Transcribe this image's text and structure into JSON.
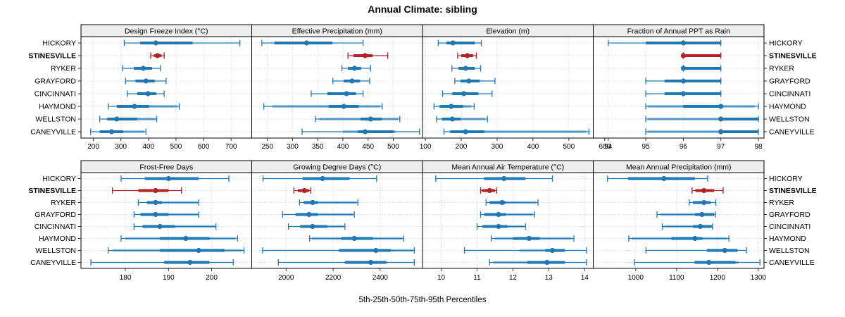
{
  "title": "Annual Climate: sibling",
  "footer": "5th-25th-50th-75th-95th Percentiles",
  "sites": [
    "HICKORY",
    "STINESVILLE",
    "RYKER",
    "GRAYFORD",
    "CINCINNATI",
    "HAYMOND",
    "WELLSTON",
    "CANEYVILLE"
  ],
  "highlight_site": "STINESVILLE",
  "colors": {
    "series": "#1f77b4",
    "series_light": "#9fc8e2",
    "highlight": "#b22222",
    "highlight_light": "#dba5a5",
    "grid": "#c8c8c8",
    "strip_bg": "#ededed",
    "panel_border": "#000000",
    "tick": "#333333",
    "text": "#000000"
  },
  "chart_data": [
    {
      "type": "percentile-interval",
      "title": "Design Freeze Index (°C)",
      "grid_row": 0,
      "grid_col": 0,
      "xlim": [
        155,
        775
      ],
      "ticks": [
        200,
        300,
        400,
        500,
        600,
        700
      ],
      "series": [
        {
          "site": "HICKORY",
          "p": [
            312,
            370,
            427,
            560,
            732
          ],
          "light": null
        },
        {
          "site": "STINESVILLE",
          "p": [
            408,
            420,
            433,
            447,
            457
          ],
          "light": null
        },
        {
          "site": "RYKER",
          "p": [
            306,
            347,
            381,
            413,
            444
          ],
          "light": null
        },
        {
          "site": "GRAYFORD",
          "p": [
            317,
            353,
            391,
            423,
            464
          ],
          "light": null
        },
        {
          "site": "CINCINNATI",
          "p": [
            323,
            359,
            398,
            428,
            457
          ],
          "light": null
        },
        {
          "site": "HAYMOND",
          "p": [
            254,
            285,
            349,
            402,
            512
          ],
          "light": [
            402,
            505
          ]
        },
        {
          "site": "WELLSTON",
          "p": [
            223,
            250,
            285,
            359,
            430
          ],
          "light": [
            359,
            425
          ]
        },
        {
          "site": "CANEYVILLE",
          "p": [
            190,
            223,
            266,
            308,
            391
          ],
          "light": [
            308,
            385
          ]
        }
      ]
    },
    {
      "type": "percentile-interval",
      "title": "Effective Precipitation (mm)",
      "grid_row": 0,
      "grid_col": 1,
      "xlim": [
        219,
        558
      ],
      "ticks": [
        250,
        300,
        350,
        400,
        450,
        500
      ],
      "series": [
        {
          "site": "HICKORY",
          "p": [
            239,
            264,
            328,
            379,
            440
          ],
          "light": null
        },
        {
          "site": "STINESVILLE",
          "p": [
            410,
            421,
            444,
            459,
            489
          ],
          "light": null
        },
        {
          "site": "RYKER",
          "p": [
            398,
            410,
            423,
            436,
            455
          ],
          "light": null
        },
        {
          "site": "GRAYFORD",
          "p": [
            380,
            402,
            418,
            434,
            453
          ],
          "light": null
        },
        {
          "site": "CINCINNATI",
          "p": [
            337,
            369,
            407,
            426,
            440
          ],
          "light": null
        },
        {
          "site": "HAYMOND",
          "p": [
            243,
            372,
            402,
            431,
            478
          ],
          "light": [
            260,
            474
          ]
        },
        {
          "site": "WELLSTON",
          "p": [
            345,
            435,
            455,
            477,
            513
          ],
          "light": [
            353,
            509
          ]
        },
        {
          "site": "CANEYVILLE",
          "p": [
            319,
            430,
            444,
            500,
            552
          ],
          "light": [
            400,
            505
          ]
        }
      ]
    },
    {
      "type": "percentile-interval",
      "title": "Elevation (m)",
      "grid_row": 0,
      "grid_col": 2,
      "xlim": [
        92,
        568
      ],
      "ticks": [
        100,
        200,
        300,
        400,
        500,
        600
      ],
      "series": [
        {
          "site": "HICKORY",
          "p": [
            136,
            159,
            177,
            238,
            256
          ],
          "light": null
        },
        {
          "site": "STINESVILLE",
          "p": [
            190,
            200,
            217,
            233,
            242
          ],
          "light": null
        },
        {
          "site": "RYKER",
          "p": [
            174,
            192,
            212,
            238,
            254
          ],
          "light": null
        },
        {
          "site": "GRAYFORD",
          "p": [
            182,
            198,
            221,
            251,
            294
          ],
          "light": null
        },
        {
          "site": "CINCINNATI",
          "p": [
            148,
            175,
            207,
            248,
            286
          ],
          "light": null
        },
        {
          "site": "HAYMOND",
          "p": [
            124,
            140,
            172,
            205,
            236
          ],
          "light": [
            175,
            228
          ]
        },
        {
          "site": "WELLSTON",
          "p": [
            131,
            146,
            175,
            198,
            273
          ],
          "light": [
            198,
            267
          ]
        },
        {
          "site": "CANEYVILLE",
          "p": [
            152,
            169,
            212,
            264,
            556
          ],
          "light": [
            264,
            548
          ]
        }
      ]
    },
    {
      "type": "percentile-interval",
      "title": "Fraction of Annual PPT as Rain",
      "grid_row": 0,
      "grid_col": 3,
      "xlim": [
        93.6,
        98.15
      ],
      "ticks": [
        94,
        95,
        96,
        97,
        98
      ],
      "series": [
        {
          "site": "HICKORY",
          "p": [
            94,
            95,
            96,
            97,
            97
          ],
          "light": null
        },
        {
          "site": "STINESVILLE",
          "p": [
            96,
            96,
            96,
            97,
            97
          ],
          "light": null
        },
        {
          "site": "RYKER",
          "p": [
            96,
            96,
            96,
            97,
            97
          ],
          "light": null
        },
        {
          "site": "GRAYFORD",
          "p": [
            95,
            95.5,
            96,
            97,
            97
          ],
          "light": null
        },
        {
          "site": "CINCINNATI",
          "p": [
            95,
            95.5,
            96,
            97,
            97
          ],
          "light": null
        },
        {
          "site": "HAYMOND",
          "p": [
            95,
            96,
            97,
            97,
            98
          ],
          "light": [
            95.05,
            97.9
          ]
        },
        {
          "site": "WELLSTON",
          "p": [
            95,
            97,
            97,
            98,
            98
          ],
          "light": [
            95.05,
            97
          ]
        },
        {
          "site": "CANEYVILLE",
          "p": [
            95,
            97,
            97,
            98,
            98
          ],
          "light": [
            95.05,
            97
          ]
        }
      ]
    },
    {
      "type": "percentile-interval",
      "title": "Frost-Free Days",
      "grid_row": 1,
      "grid_col": 0,
      "xlim": [
        169.7,
        209.3
      ],
      "ticks": [
        180,
        190,
        200
      ],
      "series": [
        {
          "site": "HICKORY",
          "p": [
            179,
            184.5,
            190,
            197,
            204
          ],
          "light": null
        },
        {
          "site": "STINESVILLE",
          "p": [
            177,
            183,
            187,
            190,
            193
          ],
          "light": null
        },
        {
          "site": "RYKER",
          "p": [
            183,
            185,
            187,
            188.5,
            197
          ],
          "light": [
            188.5,
            196.8
          ]
        },
        {
          "site": "GRAYFORD",
          "p": [
            182,
            183.5,
            187,
            190,
            197
          ],
          "light": [
            190,
            196.8
          ]
        },
        {
          "site": "CINCINNATI",
          "p": [
            182,
            184,
            188,
            191.5,
            201
          ],
          "light": [
            191.5,
            200.8
          ]
        },
        {
          "site": "HAYMOND",
          "p": [
            179,
            188,
            194,
            199.5,
            206
          ],
          "light": [
            180,
            205.5
          ]
        },
        {
          "site": "WELLSTON",
          "p": [
            176,
            188,
            197,
            203,
            207.5
          ],
          "light": [
            177,
            207
          ]
        },
        {
          "site": "CANEYVILLE",
          "p": [
            172,
            189,
            195,
            199.5,
            205
          ],
          "light": null
        }
      ]
    },
    {
      "type": "percentile-interval",
      "title": "Growing Degree Days (°C)",
      "grid_row": 1,
      "grid_col": 1,
      "xlim": [
        1854,
        2580
      ],
      "ticks": [
        2000,
        2200,
        2400
      ],
      "series": [
        {
          "site": "HICKORY",
          "p": [
            1902,
            2070,
            2155,
            2270,
            2385
          ],
          "light": null
        },
        {
          "site": "STINESVILLE",
          "p": [
            2033,
            2050,
            2078,
            2098,
            2105
          ],
          "light": null
        },
        {
          "site": "RYKER",
          "p": [
            2057,
            2075,
            2113,
            2135,
            2305
          ],
          "light": [
            2135,
            2300
          ]
        },
        {
          "site": "GRAYFORD",
          "p": [
            1985,
            2040,
            2097,
            2135,
            2290
          ],
          "light": [
            2135,
            2285
          ]
        },
        {
          "site": "CINCINNATI",
          "p": [
            2010,
            2060,
            2112,
            2175,
            2250
          ],
          "light": [
            2175,
            2245
          ]
        },
        {
          "site": "HAYMOND",
          "p": [
            2100,
            2235,
            2290,
            2370,
            2500
          ],
          "light": [
            2110,
            2495
          ]
        },
        {
          "site": "WELLSTON",
          "p": [
            1900,
            2225,
            2382,
            2445,
            2545
          ],
          "light": [
            2230,
            2540
          ]
        },
        {
          "site": "CANEYVILLE",
          "p": [
            1967,
            2250,
            2360,
            2425,
            2545
          ],
          "light": [
            2250,
            2430
          ]
        }
      ]
    },
    {
      "type": "percentile-interval",
      "title": "Mean Annual Air Temperature (°C)",
      "grid_row": 1,
      "grid_col": 2,
      "xlim": [
        9.48,
        14.24
      ],
      "ticks": [
        10,
        11,
        12,
        13,
        14
      ],
      "series": [
        {
          "site": "HICKORY",
          "p": [
            9.85,
            11.2,
            11.75,
            12.35,
            13.1
          ],
          "light": null
        },
        {
          "site": "STINESVILLE",
          "p": [
            11.1,
            11.15,
            11.35,
            11.5,
            11.55
          ],
          "light": null
        },
        {
          "site": "RYKER",
          "p": [
            11.25,
            11.35,
            11.7,
            11.8,
            12.7
          ],
          "light": [
            11.8,
            12.65
          ]
        },
        {
          "site": "GRAYFORD",
          "p": [
            11.1,
            11.2,
            11.6,
            11.8,
            12.6
          ],
          "light": [
            11.8,
            12.55
          ]
        },
        {
          "site": "CINCINNATI",
          "p": [
            11.0,
            11.15,
            11.6,
            11.85,
            12.35
          ],
          "light": [
            11.85,
            12.3
          ]
        },
        {
          "site": "HAYMOND",
          "p": [
            11.4,
            12.0,
            12.45,
            12.75,
            13.7
          ],
          "light": [
            11.5,
            13.65
          ]
        },
        {
          "site": "WELLSTON",
          "p": [
            10.65,
            12.9,
            13.1,
            13.45,
            14.05
          ],
          "light": [
            12.2,
            13.45
          ]
        },
        {
          "site": "CANEYVILLE",
          "p": [
            11.35,
            12.4,
            12.95,
            13.45,
            14.05
          ],
          "light": [
            11.45,
            13.45
          ]
        }
      ]
    },
    {
      "type": "percentile-interval",
      "title": "Mean Annual Precipitation (mm)",
      "grid_row": 1,
      "grid_col": 3,
      "xlim": [
        896,
        1314
      ],
      "ticks": [
        1000,
        1100,
        1200,
        1300
      ],
      "series": [
        {
          "site": "HICKORY",
          "p": [
            931,
            981,
            1069,
            1145,
            1176
          ],
          "light": null
        },
        {
          "site": "STINESVILLE",
          "p": [
            1138,
            1146,
            1167,
            1192,
            1214
          ],
          "light": null
        },
        {
          "site": "RYKER",
          "p": [
            1131,
            1140,
            1167,
            1183,
            1196
          ],
          "light": null
        },
        {
          "site": "GRAYFORD",
          "p": [
            1052,
            1145,
            1162,
            1192,
            1195
          ],
          "light": [
            1060,
            1192
          ]
        },
        {
          "site": "CINCINNATI",
          "p": [
            1065,
            1140,
            1158,
            1186,
            1188
          ],
          "light": [
            1070,
            1186
          ]
        },
        {
          "site": "HAYMOND",
          "p": [
            983,
            1088,
            1145,
            1163,
            1228
          ],
          "light": [
            990,
            1223
          ]
        },
        {
          "site": "WELLSTON",
          "p": [
            1025,
            1174,
            1218,
            1249,
            1271
          ],
          "light": null
        },
        {
          "site": "CANEYVILLE",
          "p": [
            997,
            1144,
            1179,
            1244,
            1304
          ],
          "light": [
            1144,
            1252
          ]
        }
      ]
    }
  ]
}
